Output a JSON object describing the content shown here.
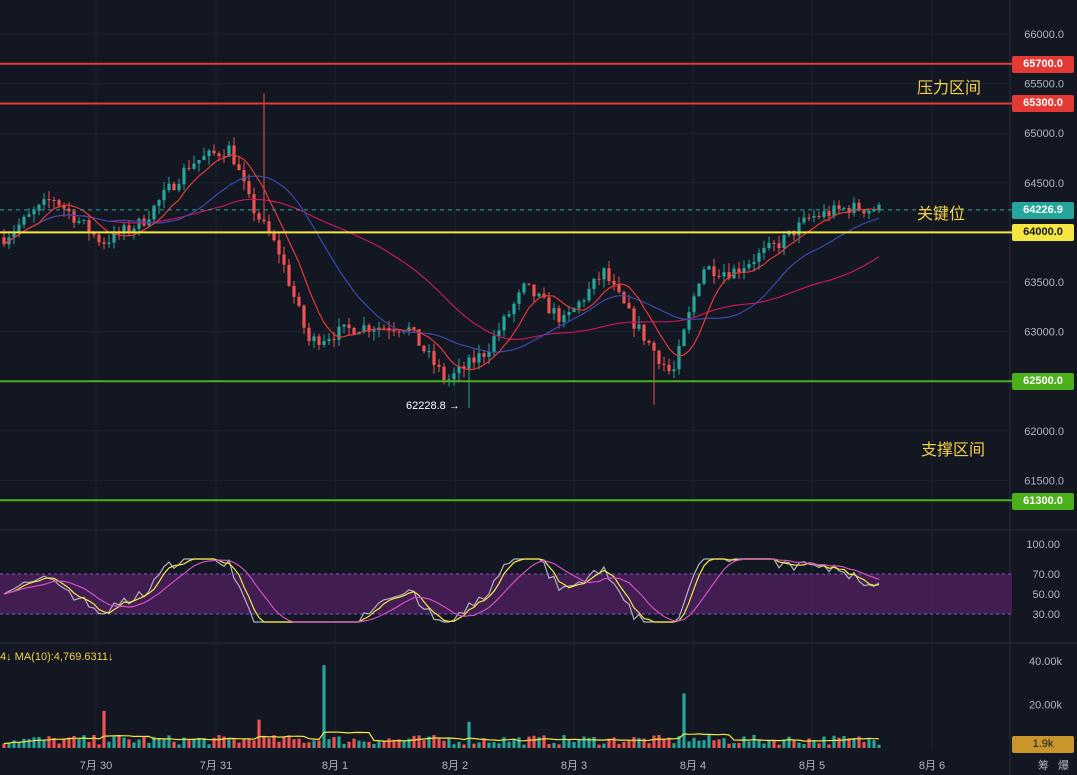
{
  "price_pane": {
    "y_ticks": [
      "66000.0",
      "65500.0",
      "65000.0",
      "64500.0",
      "63500.0",
      "63000.0",
      "62000.0",
      "61500.0"
    ],
    "levels": [
      {
        "key": "r1",
        "value": "65700.0",
        "color": "#e53935",
        "text_color": "#ffffff"
      },
      {
        "key": "r2",
        "value": "65300.0",
        "color": "#e53935",
        "text_color": "#ffffff"
      },
      {
        "key": "k",
        "value": "64000.0",
        "color": "#f5e642",
        "text_color": "#131722"
      },
      {
        "key": "s1",
        "value": "62500.0",
        "color": "#4caf1c",
        "text_color": "#ffffff"
      },
      {
        "key": "s2",
        "value": "61300.0",
        "color": "#4caf1c",
        "text_color": "#ffffff"
      }
    ],
    "current_price": {
      "value": "64226.9",
      "color": "#26a69a"
    },
    "zone_labels": {
      "pressure": "压力区间",
      "key": "关键位",
      "support": "支撑区间"
    },
    "low_annotation": "62228.8 →"
  },
  "rsi_pane": {
    "y_ticks": [
      "100.00",
      "70.00",
      "50.00",
      "30.00"
    ]
  },
  "volume_pane": {
    "ma_legend": "4↓ MA(10):4,769.6311↓",
    "y_ticks": [
      "40.00k",
      "20.00k"
    ],
    "last_volume": "1.9k"
  },
  "time_axis": [
    "7月 30",
    "7月 31",
    "8月 1",
    "8月 2",
    "8月 3",
    "8月 4",
    "8月 5",
    "8月 6"
  ],
  "bottom_buttons": {
    "b1": "筹",
    "b2": "爆"
  },
  "colors": {
    "background": "#131722",
    "up": "#26a69a",
    "down": "#ef5350",
    "ma_short": "#e53935",
    "ma_mid": "#3949ab",
    "ma_long": "#c2185b",
    "rsi_band": "#4a1f5a"
  },
  "chart_data": {
    "type": "candlestick",
    "x_range": [
      "7月 30",
      "8月 5"
    ],
    "price_range": [
      61300,
      66100
    ],
    "horizontal_levels": [
      65700,
      65300,
      64000,
      62500,
      61300
    ],
    "current_price": 64226.9,
    "session_low": 62228.8,
    "rsi_band": [
      30,
      70
    ],
    "volume_ma10": 4769.6311,
    "last_volume": 1900,
    "close_path_approx": [
      [
        0,
        63950
      ],
      [
        0.05,
        64350
      ],
      [
        0.1,
        63900
      ],
      [
        0.14,
        64100
      ],
      [
        0.19,
        64700
      ],
      [
        0.23,
        64850
      ],
      [
        0.25,
        64300
      ],
      [
        0.28,
        63800
      ],
      [
        0.31,
        62900
      ],
      [
        0.36,
        63050
      ],
      [
        0.41,
        63050
      ],
      [
        0.45,
        62500
      ],
      [
        0.49,
        62800
      ],
      [
        0.53,
        63450
      ],
      [
        0.57,
        63100
      ],
      [
        0.61,
        63600
      ],
      [
        0.64,
        63100
      ],
      [
        0.68,
        62550
      ],
      [
        0.71,
        63650
      ],
      [
        0.74,
        63600
      ],
      [
        0.79,
        63900
      ],
      [
        0.82,
        64150
      ],
      [
        0.86,
        64250
      ],
      [
        0.89,
        64230
      ]
    ]
  }
}
